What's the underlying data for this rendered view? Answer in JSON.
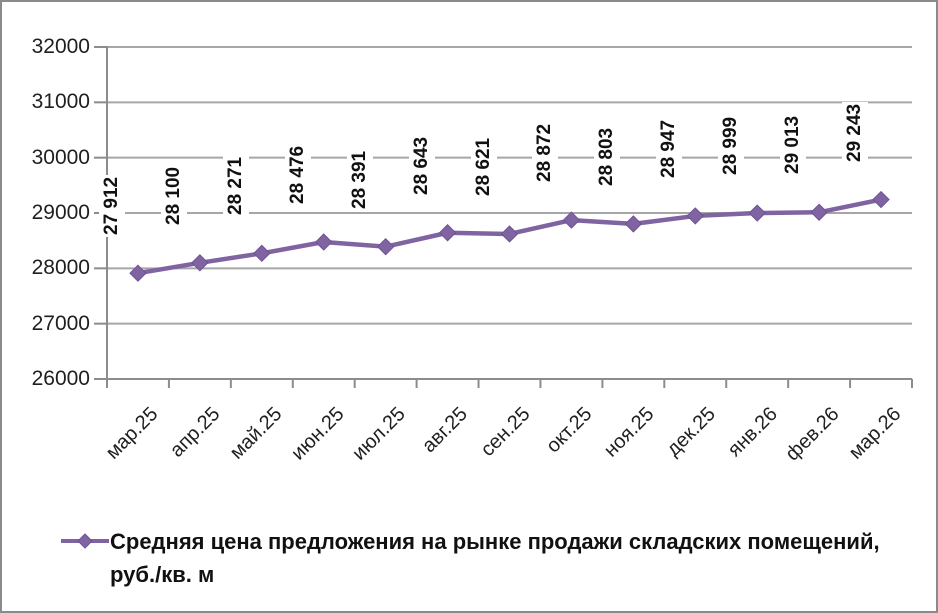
{
  "chart_data": {
    "type": "line",
    "title": "",
    "categories": [
      "мар.25",
      "апр.25",
      "май.25",
      "июн.25",
      "июл.25",
      "авг.25",
      "сен.25",
      "окт.25",
      "ноя.25",
      "дек.25",
      "янв.26",
      "фев.26",
      "мар.26"
    ],
    "series": [
      {
        "name": "Средняя цена предложения на рынке продажи складских помещений, руб./кв. м",
        "values": [
          27912,
          28100,
          28271,
          28476,
          28391,
          28643,
          28621,
          28872,
          28803,
          28947,
          28999,
          29013,
          29243
        ],
        "point_labels": [
          "27 912",
          "28 100",
          "28 271",
          "28 476",
          "28 391",
          "28 643",
          "28 621",
          "28 872",
          "28 803",
          "28 947",
          "28 999",
          "29 013",
          "29 243"
        ],
        "marker": "diamond"
      }
    ],
    "xlabel": "",
    "ylabel": "",
    "ylim": [
      26000,
      32000
    ],
    "yticks": [
      26000,
      27000,
      28000,
      29000,
      30000,
      31000,
      32000
    ],
    "grid": true,
    "legend_position": "bottom"
  },
  "colors": {
    "series": "#8064A2",
    "series_edge": "#6d5394",
    "gridline": "#a6a6a6",
    "axis": "#8c8c8c",
    "text": "#1f1f1f",
    "background": "#ffffff",
    "frame": "#8a8a8a"
  }
}
